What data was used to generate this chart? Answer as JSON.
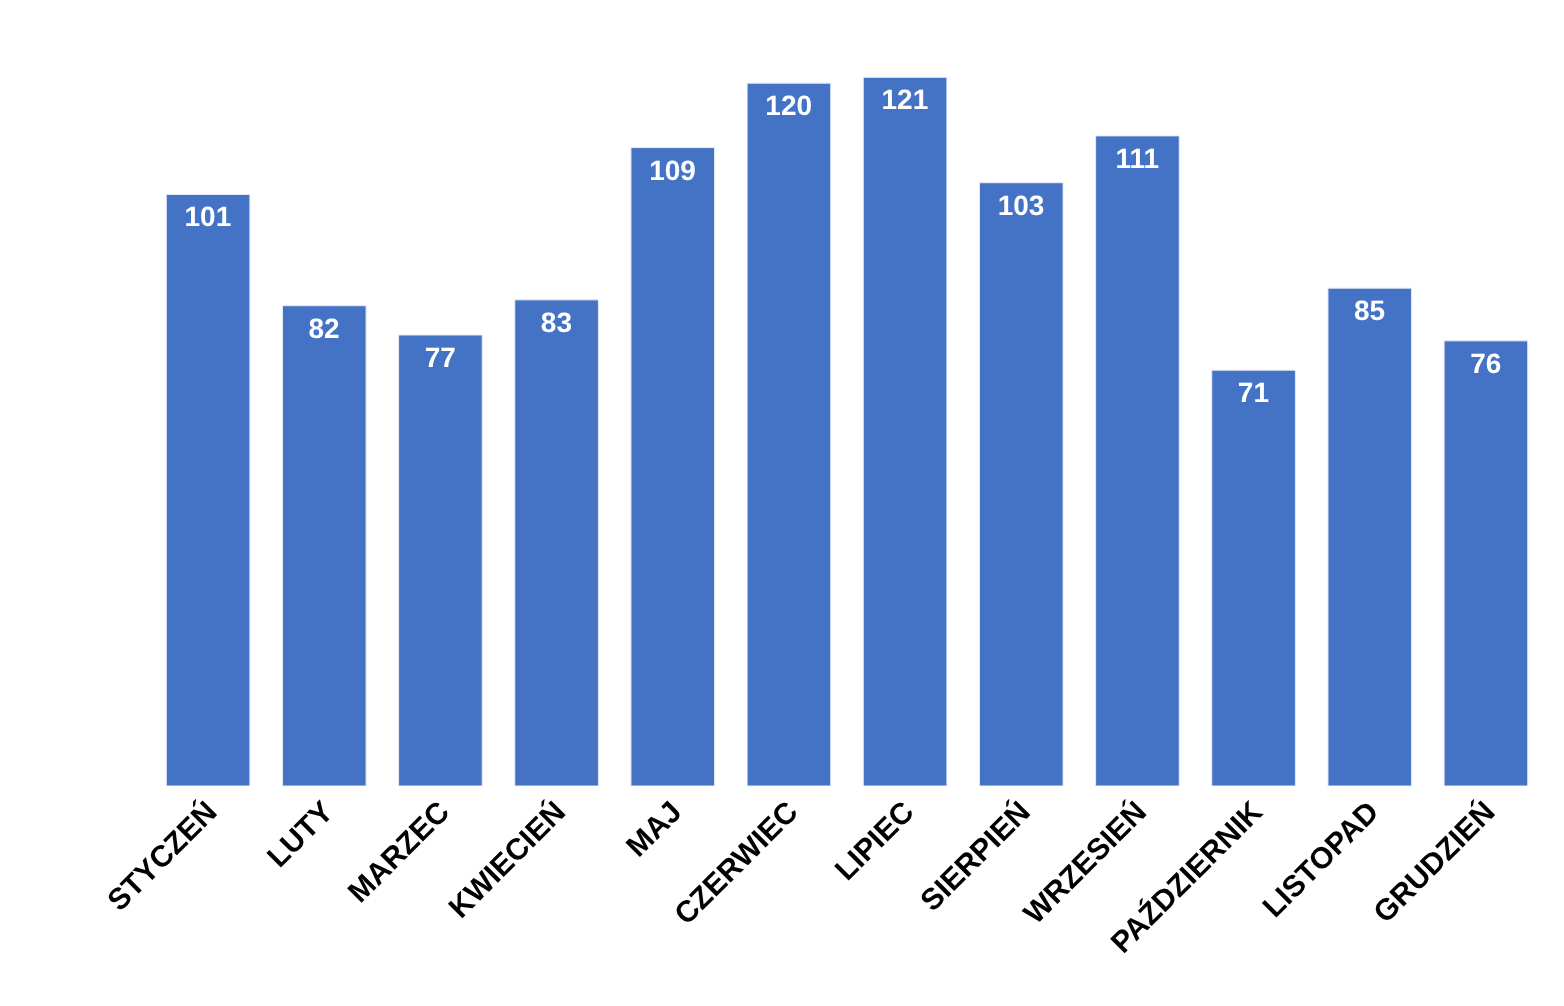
{
  "chart_data": {
    "type": "bar",
    "categories": [
      "STYCZEŃ",
      "LUTY",
      "MARZEC",
      "KWIECIEŃ",
      "MAJ",
      "CZERWIEC",
      "LIPIEC",
      "SIERPIEŃ",
      "WRZESIEŃ",
      "PAŹDZIERNIK",
      "LISTOPAD",
      "GRUDZIEŃ"
    ],
    "values": [
      101,
      82,
      77,
      83,
      109,
      120,
      121,
      103,
      111,
      71,
      85,
      76
    ],
    "color": "#4472c4",
    "data_labels": true
  }
}
